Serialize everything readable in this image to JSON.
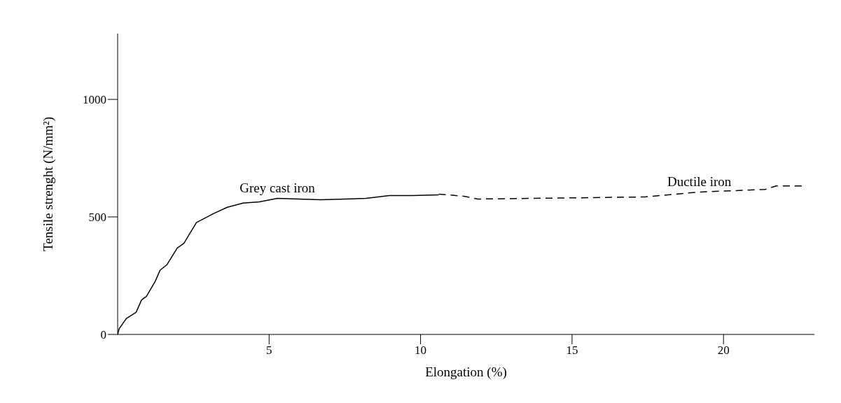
{
  "chart_data": {
    "type": "line",
    "xlabel": "Elongation (%)",
    "ylabel": "Tensile strenght (N/mm²)",
    "xlim": [
      0,
      23
    ],
    "ylim": [
      0,
      1280
    ],
    "xticks": [
      5,
      10,
      15,
      20
    ],
    "yticks": [
      0,
      500,
      1000
    ],
    "marker": "none",
    "series": [
      {
        "name": "Grey cast iron",
        "color": "#000000",
        "line_style": "solid",
        "x": [
          0,
          0.05,
          0.29,
          0.61,
          0.79,
          0.95,
          1.24,
          1.4,
          1.63,
          1.97,
          2.19,
          2.6,
          3.16,
          3.62,
          4.14,
          4.68,
          5.27,
          6.71,
          8.2,
          8.97,
          9.72,
          10.6
        ],
        "values": [
          0,
          24,
          68,
          94,
          147,
          162,
          226,
          273,
          297,
          368,
          388,
          476,
          514,
          541,
          559,
          564,
          579,
          573,
          579,
          591,
          591,
          594
        ]
      },
      {
        "name": "Ductile iron",
        "color": "#000000",
        "line_style": "dashed",
        "x": [
          10.6,
          11.43,
          11.89,
          17.4,
          19.2,
          21.38,
          21.74,
          22.64
        ],
        "values": [
          597,
          588,
          576,
          585,
          606,
          617,
          632,
          632
        ]
      }
    ]
  }
}
